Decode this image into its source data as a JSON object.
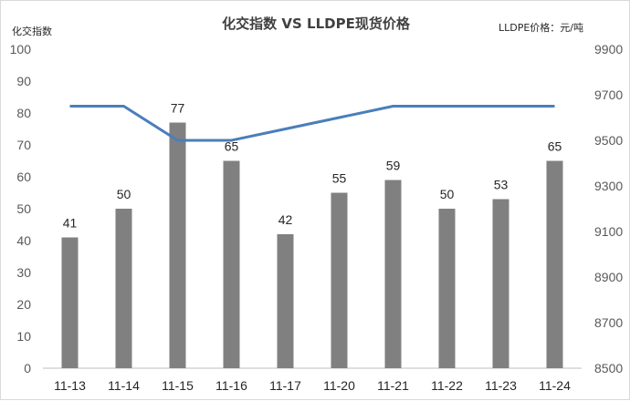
{
  "chart_data": {
    "type": "bar",
    "title": "化交指数 VS LLDPE现货价格",
    "left_axis_title": "化交指数",
    "right_axis_title": "LLDPE价格：元/吨",
    "categories": [
      "11-13",
      "11-14",
      "11-15",
      "11-16",
      "11-17",
      "11-20",
      "11-21",
      "11-22",
      "11-23",
      "11-24"
    ],
    "series": [
      {
        "type": "bar",
        "axis": "left",
        "values": [
          41,
          50,
          77,
          65,
          42,
          55,
          59,
          50,
          53,
          65
        ],
        "color": "#808080",
        "data_labels": true
      },
      {
        "type": "line",
        "axis": "right",
        "values": [
          9650,
          9650,
          9500,
          9500,
          9550,
          9600,
          9650,
          9650,
          9650,
          9650
        ],
        "color": "#4a7ebb"
      }
    ],
    "left_ylim": [
      0,
      100
    ],
    "left_yticks": [
      0,
      10,
      20,
      30,
      40,
      50,
      60,
      70,
      80,
      90,
      100
    ],
    "right_ylim": [
      8500,
      9900
    ],
    "right_yticks": [
      8500,
      8700,
      8900,
      9100,
      9300,
      9500,
      9700,
      9900
    ],
    "grid": false
  }
}
